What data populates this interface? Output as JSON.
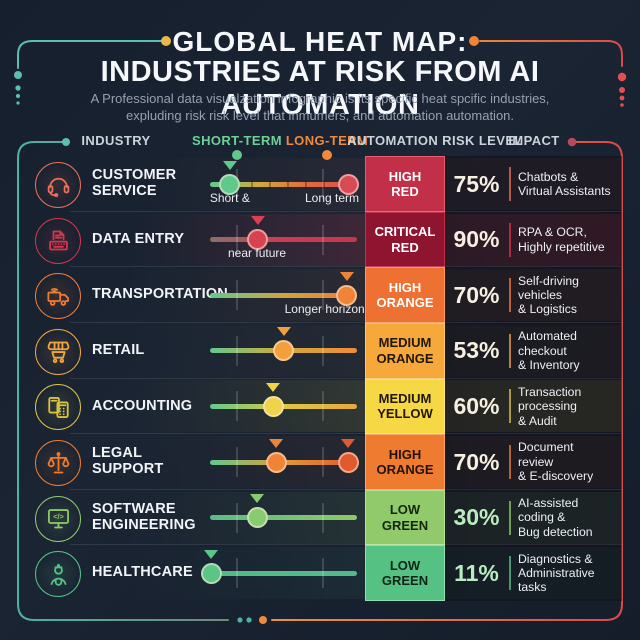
{
  "title": {
    "line1": "GLOBAL HEAT MAP:",
    "line2": "INDUSTRIES AT RISK FROM AI AUTOMATION"
  },
  "subtitle": {
    "line1": "A Professional data visualzation infographic is its specific heat spcific industries,",
    "line2": "expluding risk risk level that inmumers, and automation automation."
  },
  "columns": {
    "industry": "INDUSTRY",
    "short_term": "SHORT-TERM",
    "long_term": "LONG-TERM",
    "risk": "AUTOMATION RISK LEVEL",
    "impact": "IMPACT"
  },
  "colors": {
    "background": "#1a2433",
    "accent_teal": "#5bbfae",
    "accent_gold": "#e8b84a",
    "accent_orange": "#ef8436",
    "accent_red": "#d94a4a",
    "header_green": "#6fcf97",
    "header_orange": "#f08a3a",
    "header_gray": "#ccd2db"
  },
  "sliders": {
    "tick_positions_pct": [
      18.4,
      76.9
    ]
  },
  "rows": [
    {
      "industry": "CUSTOMER\nSERVICE",
      "icon": "headset-icon",
      "accent": "#e8705a",
      "tint": 0.1,
      "track": [
        "#63c98d",
        "#d2a93e",
        "#e06a3d",
        "#d84b55"
      ],
      "minor_ticks": true,
      "markers": [
        {
          "pos": 13.5,
          "color": "#5fc98b",
          "triangle": true
        },
        {
          "pos": 94,
          "color": "#d84b55",
          "triangle": false
        }
      ],
      "labels": [
        {
          "pos": 13.5,
          "text": "Short &"
        },
        {
          "pos": 83,
          "text": "Long term"
        }
      ],
      "risk_label": "HIGH\nRED",
      "risk_bg": "#c22f48",
      "risk_fg": "#ffffff",
      "risk_border": "#ef6d75",
      "percent": "75%",
      "percent_color": "#f7f0e1",
      "impact": "Chatbots &\nVirtual Assistants"
    },
    {
      "industry": "DATA ENTRY",
      "icon": "data-entry-icon",
      "accent": "#d8354a",
      "tint": 0.28,
      "track": [
        "#8a7068",
        "#cf3b4c",
        "#c2394a"
      ],
      "minor_ticks": false,
      "markers": [
        {
          "pos": 32.5,
          "color": "#d84150",
          "triangle": true
        }
      ],
      "labels": [
        {
          "pos": 32,
          "text": "near future"
        }
      ],
      "risk_label": "CRITICAL\nRED",
      "risk_bg": "#8e1430",
      "risk_fg": "#ffffff",
      "risk_border": "#d23a52",
      "percent": "90%",
      "percent_color": "#f7f0e1",
      "impact": "RPA & OCR,\nHighly repetitive"
    },
    {
      "industry": "TRANSPORTATION",
      "icon": "truck-icon",
      "accent": "#ef7a33",
      "tint": 0.12,
      "track": [
        "#63c98d",
        "#cfa43f",
        "#ef7a33"
      ],
      "minor_ticks": false,
      "markers": [
        {
          "pos": 93,
          "color": "#ef8436",
          "triangle": true
        }
      ],
      "labels": [
        {
          "pos": 78,
          "text": "Longer horizon"
        }
      ],
      "risk_label": "HIGH\nORANGE",
      "risk_bg": "#ef7033",
      "risk_fg": "#ffffff",
      "risk_border": "#ffab70",
      "percent": "70%",
      "percent_color": "#f7f0e1",
      "impact": "Self-driving\nvehicles\n& Logistics"
    },
    {
      "industry": "RETAIL",
      "icon": "retail-store-icon",
      "accent": "#f2a63d",
      "tint": 0.08,
      "track": [
        "#63c98d",
        "#d2a93e",
        "#ef8c3a"
      ],
      "minor_ticks": false,
      "markers": [
        {
          "pos": 50,
          "color": "#f2a03c",
          "triangle": true
        }
      ],
      "labels": [],
      "risk_label": "MEDIUM\nORANGE",
      "risk_bg": "#f6a83a",
      "risk_fg": "#20160a",
      "risk_border": "#ffd089",
      "percent": "53%",
      "percent_color": "#f7f0e1",
      "impact": "Automated\ncheckout\n& Inventory"
    },
    {
      "industry": "ACCOUNTING",
      "icon": "calculator-icon",
      "accent": "#d8c43f",
      "tint": 0.2,
      "track": [
        "#63c98d",
        "#ddc83f",
        "#e8a83c"
      ],
      "minor_ticks": false,
      "markers": [
        {
          "pos": 43,
          "color": "#eed34b",
          "triangle": true
        }
      ],
      "labels": [],
      "risk_label": "MEDIUM\nYELLOW",
      "risk_bg": "#f6d844",
      "risk_fg": "#20160a",
      "risk_border": "#fbeb90",
      "percent": "60%",
      "percent_color": "#f7f0e1",
      "impact": "Transaction\nprocessing\n& Audit"
    },
    {
      "industry": "LEGAL SUPPORT",
      "icon": "scales-icon",
      "accent": "#ee7b2f",
      "tint": 0.1,
      "track": [
        "#63c98d",
        "#dd9a3a",
        "#e0572f"
      ],
      "minor_ticks": false,
      "markers": [
        {
          "pos": 45,
          "color": "#ef8436",
          "triangle": true
        },
        {
          "pos": 94,
          "color": "#e2592f",
          "triangle": true
        }
      ],
      "labels": [],
      "risk_label": "HIGH\nORANGE",
      "risk_bg": "#ee7b2f",
      "risk_fg": "#231106",
      "risk_border": "#ffb377",
      "percent": "70%",
      "percent_color": "#f7f0e1",
      "impact": "Document\nreview\n& E-discovery"
    },
    {
      "industry": "SOFTWARE\nENGINEERING",
      "icon": "code-monitor-icon",
      "accent": "#8fca6a",
      "tint": 0.16,
      "track": [
        "#5abc85",
        "#8ec969"
      ],
      "minor_ticks": false,
      "markers": [
        {
          "pos": 32,
          "color": "#86cd72",
          "triangle": true
        }
      ],
      "labels": [],
      "risk_label": "LOW\nGREEN",
      "risk_bg": "#90ca6b",
      "risk_fg": "#15260f",
      "risk_border": "#c4e8a6",
      "percent": "30%",
      "percent_color": "#b9edbe",
      "impact": "AI-assisted\ncoding &\nBug detection"
    },
    {
      "industry": "HEALTHCARE",
      "icon": "doctor-icon",
      "accent": "#54c287",
      "tint": 0.1,
      "track": [
        "#4fbe85",
        "#55b88b"
      ],
      "minor_ticks": false,
      "markers": [
        {
          "pos": 1,
          "color": "#59c687",
          "triangle": true
        }
      ],
      "labels": [],
      "risk_label": "LOW\nGREEN",
      "risk_bg": "#55c183",
      "risk_fg": "#0e2417",
      "risk_border": "#a8e6c4",
      "percent": "11%",
      "percent_color": "#b9edbe",
      "impact": "Diagnostics &\nAdministrative\ntasks"
    }
  ],
  "chart_data": {
    "type": "table",
    "title": "GLOBAL HEAT MAP: INDUSTRIES AT RISK FROM AI AUTOMATION",
    "columns": [
      "INDUSTRY",
      "SHORT-TERM",
      "LONG-TERM",
      "AUTOMATION RISK LEVEL",
      "IMPACT"
    ],
    "rows": [
      {
        "industry": "Customer Service",
        "risk_level": "High Red",
        "risk_pct": 75,
        "impact": "Chatbots & Virtual Assistants",
        "timeline_positions_pct": [
          14,
          94
        ],
        "timeline_notes": [
          "Short &",
          "Long term"
        ]
      },
      {
        "industry": "Data Entry",
        "risk_level": "Critical Red",
        "risk_pct": 90,
        "impact": "RPA & OCR, Highly repetitive",
        "timeline_positions_pct": [
          33
        ],
        "timeline_notes": [
          "near future"
        ]
      },
      {
        "industry": "Transportation",
        "risk_level": "High Orange",
        "risk_pct": 70,
        "impact": "Self-driving vehicles & Logistics",
        "timeline_positions_pct": [
          93
        ],
        "timeline_notes": [
          "Longer horizon"
        ]
      },
      {
        "industry": "Retail",
        "risk_level": "Medium Orange",
        "risk_pct": 53,
        "impact": "Automated checkout & Inventory",
        "timeline_positions_pct": [
          50
        ],
        "timeline_notes": []
      },
      {
        "industry": "Accounting",
        "risk_level": "Medium Yellow",
        "risk_pct": 60,
        "impact": "Transaction processing & Audit",
        "timeline_positions_pct": [
          43
        ],
        "timeline_notes": []
      },
      {
        "industry": "Legal Support",
        "risk_level": "High Orange",
        "risk_pct": 70,
        "impact": "Document review & E-discovery",
        "timeline_positions_pct": [
          45,
          94
        ],
        "timeline_notes": []
      },
      {
        "industry": "Software Engineering",
        "risk_level": "Low Green",
        "risk_pct": 30,
        "impact": "AI-assisted coding & Bug detection",
        "timeline_positions_pct": [
          32
        ],
        "timeline_notes": []
      },
      {
        "industry": "Healthcare",
        "risk_level": "Low Green",
        "risk_pct": 11,
        "impact": "Diagnostics & Administrative tasks",
        "timeline_positions_pct": [
          1
        ],
        "timeline_notes": []
      }
    ]
  }
}
